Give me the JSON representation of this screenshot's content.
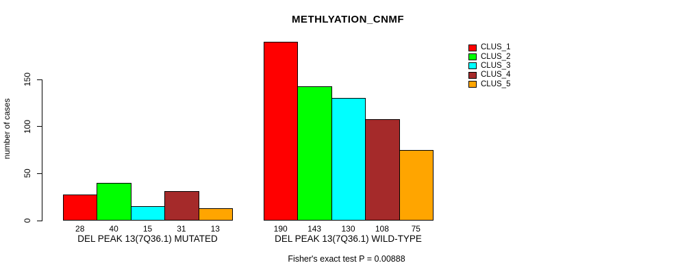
{
  "chart_data": {
    "type": "bar",
    "title": "METHLYATION_CNMF",
    "xlabel": "",
    "ylabel": "number of cases",
    "ylim": [
      0,
      150
    ],
    "yticks": [
      0,
      50,
      100,
      150
    ],
    "grid": false,
    "legend_position": "right",
    "bar_value_labels": true,
    "categories": [
      "DEL PEAK 13(7Q36.1) MUTATED",
      "DEL PEAK 13(7Q36.1) WILD-TYPE"
    ],
    "series": [
      {
        "name": "CLUS_1",
        "color": "#FF0000",
        "values": [
          28,
          190
        ]
      },
      {
        "name": "CLUS_2",
        "color": "#00FF00",
        "values": [
          40,
          143
        ]
      },
      {
        "name": "CLUS_3",
        "color": "#00FFFF",
        "values": [
          15,
          130
        ]
      },
      {
        "name": "CLUS_4",
        "color": "#A52A2A",
        "values": [
          31,
          108
        ]
      },
      {
        "name": "CLUS_5",
        "color": "#FFA500",
        "values": [
          13,
          75
        ]
      }
    ],
    "annotation": "Fisher's exact test P = 0.00888"
  }
}
